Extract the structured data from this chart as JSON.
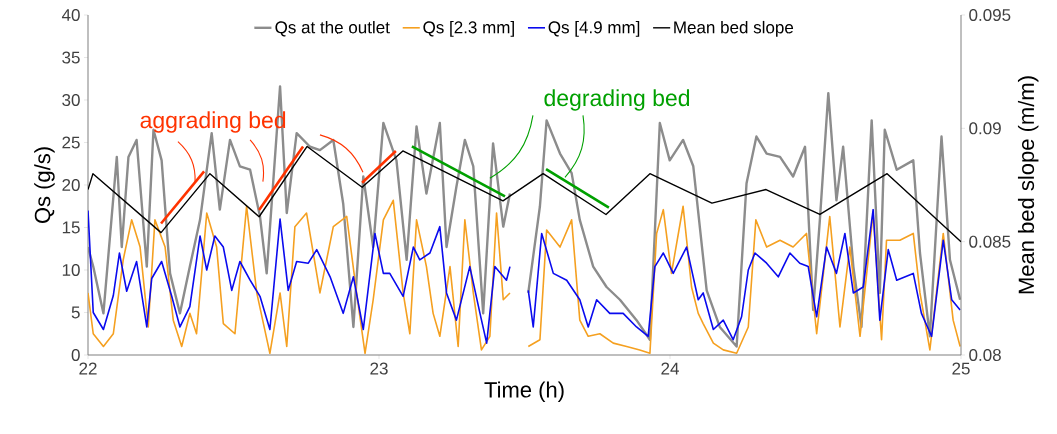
{
  "chart_data": {
    "type": "line",
    "xlabel": "Time (h)",
    "ylabel": "Qs (g/s)",
    "y2label": "Mean bed slope (m/m)",
    "xlim": [
      22,
      25
    ],
    "xticks": [
      22,
      23,
      24,
      25
    ],
    "ylim": [
      0,
      40
    ],
    "yticks": [
      0,
      5,
      10,
      15,
      20,
      25,
      30,
      35,
      40
    ],
    "y2lim": [
      0.08,
      0.095
    ],
    "y2ticks": [
      0.08,
      0.085,
      0.09,
      0.095
    ],
    "legend": "top",
    "marker": "none",
    "line_style": "solid",
    "annotations": [
      {
        "text": "aggrading bed",
        "x": 22.368,
        "y": 20.3
      },
      {
        "text": "degrading bed",
        "x": 23.381,
        "y": 20.8
      }
    ],
    "series": [
      {
        "name": "Qs at the outlet",
        "color": "#8c8c8c",
        "x": [
          22.0,
          22.018,
          22.053,
          22.099,
          22.116,
          22.139,
          22.167,
          22.202,
          22.225,
          22.253,
          22.282,
          22.316,
          22.35,
          22.385,
          22.425,
          22.453,
          22.488,
          22.522,
          22.557,
          22.591,
          22.614,
          22.66,
          22.683,
          22.717,
          22.763,
          22.797,
          22.843,
          22.877,
          22.912,
          22.946,
          22.98,
          23.015,
          23.06,
          23.095,
          23.129,
          23.163,
          23.209,
          23.232,
          23.266,
          23.295,
          23.324,
          23.358,
          23.392,
          23.427,
          23.45,
          23.48,
          23.513,
          23.553,
          23.576,
          23.622,
          23.662,
          23.69,
          23.736,
          23.782,
          23.828,
          23.885,
          23.931,
          23.965,
          23.999,
          24.045,
          24.08,
          24.126,
          24.171,
          24.229,
          24.263,
          24.297,
          24.332,
          24.378,
          24.423,
          24.464,
          24.492,
          24.515,
          24.544,
          24.572,
          24.595,
          24.63,
          24.658,
          24.693,
          24.721,
          24.738,
          24.779,
          24.836,
          24.859,
          24.893,
          24.933,
          24.962,
          24.997
        ],
        "values": [
          12.7,
          10.4,
          4.9,
          23.3,
          12.7,
          23.3,
          25.3,
          10.4,
          26.5,
          22.9,
          9.6,
          4.9,
          10.4,
          15.9,
          26.1,
          17.1,
          25.3,
          22.2,
          21.8,
          16.3,
          9.6,
          31.6,
          16.7,
          26.1,
          24.5,
          24.1,
          25.3,
          17.8,
          3.3,
          21,
          12.7,
          27.3,
          22.9,
          11.2,
          26.9,
          19,
          27.3,
          12.7,
          19.8,
          25.3,
          22.2,
          4.9,
          24.9,
          15.1,
          19,
          null,
          7.3,
          17.5,
          27.6,
          23.7,
          21.4,
          15.9,
          10.4,
          8,
          6.5,
          4.1,
          1.8,
          27.3,
          22.9,
          25.3,
          22.2,
          7.6,
          3.3,
          1,
          20.2,
          25.7,
          23.7,
          23.3,
          21,
          24.5,
          5.3,
          15.9,
          30.8,
          18.2,
          24.5,
          10.4,
          3.3,
          27.6,
          7.3,
          26.5,
          21.8,
          22.9,
          12,
          2.2,
          25.7,
          11.2,
          6.5
        ]
      },
      {
        "name": "Qs [2.3 mm]",
        "color": "#f5a020",
        "x": [
          22.0,
          22.018,
          22.053,
          22.087,
          22.121,
          22.15,
          22.179,
          22.207,
          22.23,
          22.265,
          22.293,
          22.322,
          22.35,
          22.373,
          22.408,
          22.442,
          22.465,
          22.505,
          22.545,
          22.58,
          22.625,
          22.66,
          22.683,
          22.711,
          22.751,
          22.797,
          22.843,
          22.889,
          22.923,
          22.952,
          22.98,
          23.015,
          23.049,
          23.083,
          23.106,
          23.129,
          23.163,
          23.186,
          23.209,
          23.244,
          23.272,
          23.295,
          23.324,
          23.352,
          23.381,
          23.404,
          23.427,
          23.45,
          23.48,
          23.513,
          23.553,
          23.576,
          23.622,
          23.662,
          23.69,
          23.719,
          23.759,
          23.805,
          23.851,
          23.896,
          23.931,
          23.954,
          23.977,
          24.005,
          24.045,
          24.074,
          24.097,
          24.114,
          24.149,
          24.183,
          24.229,
          24.269,
          24.295,
          24.332,
          24.378,
          24.423,
          24.469,
          24.504,
          24.549,
          24.584,
          24.618,
          24.653,
          24.698,
          24.727,
          24.744,
          24.79,
          24.836,
          24.859,
          24.893,
          24.939,
          24.973,
          24.997
        ],
        "values": [
          7.3,
          2.5,
          1,
          2.5,
          11.2,
          15.9,
          12.7,
          3.3,
          15.9,
          12.7,
          4.1,
          1,
          4.9,
          2.5,
          16.7,
          12.7,
          3.7,
          2.5,
          17.5,
          7.3,
          0.2,
          7.3,
          1,
          15.1,
          16.7,
          7.3,
          15.1,
          16.3,
          7.3,
          0.2,
          6.5,
          15.9,
          18.2,
          7.3,
          2.5,
          15.9,
          10.4,
          4.9,
          2.2,
          10.4,
          1,
          15.9,
          7.3,
          0.6,
          2.2,
          16.7,
          6.5,
          7.3,
          null,
          1,
          1.8,
          14.7,
          12.7,
          15.9,
          4.1,
          2.2,
          2.5,
          1.4,
          1,
          0.6,
          0.2,
          14.3,
          17.1,
          9.6,
          17.5,
          8,
          4.9,
          3.7,
          1.4,
          0.6,
          0.2,
          3.3,
          15.9,
          12.7,
          13.5,
          12.7,
          14.3,
          2.5,
          16.3,
          3.3,
          12.7,
          2.2,
          16.7,
          1.8,
          13.5,
          13.5,
          14.3,
          7.3,
          0.6,
          14.3,
          4.1,
          1
        ]
      },
      {
        "name": "Qs [4.9 mm]",
        "color": "#0a0aee",
        "x": [
          22.0,
          22.018,
          22.053,
          22.087,
          22.108,
          22.133,
          22.167,
          22.202,
          22.219,
          22.253,
          22.287,
          22.316,
          22.35,
          22.385,
          22.408,
          22.436,
          22.465,
          22.494,
          22.522,
          22.557,
          22.591,
          22.625,
          22.66,
          22.688,
          22.717,
          22.757,
          22.786,
          22.832,
          22.877,
          22.912,
          22.946,
          22.986,
          23.015,
          23.037,
          23.083,
          23.118,
          23.14,
          23.175,
          23.209,
          23.232,
          23.266,
          23.312,
          23.347,
          23.37,
          23.398,
          23.438,
          23.45,
          23.48,
          23.513,
          23.53,
          23.559,
          23.599,
          23.645,
          23.69,
          23.719,
          23.748,
          23.793,
          23.839,
          23.885,
          23.925,
          23.948,
          23.977,
          24.011,
          24.057,
          24.097,
          24.114,
          24.149,
          24.183,
          24.217,
          24.246,
          24.269,
          24.292,
          24.332,
          24.372,
          24.412,
          24.446,
          24.475,
          24.504,
          24.538,
          24.572,
          24.601,
          24.63,
          24.664,
          24.698,
          24.721,
          24.75,
          24.779,
          24.836,
          24.864,
          24.899,
          24.939,
          24.968,
          24.997
        ],
        "values": [
          17,
          5,
          3,
          7,
          12,
          7.5,
          11,
          3.3,
          9,
          11,
          7,
          3.3,
          5.7,
          14,
          10,
          14,
          12.7,
          7.6,
          11,
          8.8,
          6.9,
          3,
          16,
          7.6,
          11,
          10.8,
          12.4,
          9.2,
          4.9,
          9.2,
          3,
          14.3,
          9.6,
          9.6,
          6.9,
          12.7,
          11.2,
          12,
          15.1,
          7.3,
          4.1,
          10.4,
          4.9,
          1.4,
          10.4,
          8.8,
          10.4,
          null,
          7.6,
          3.3,
          14.3,
          9.6,
          8.8,
          6.5,
          3.3,
          6.5,
          4.9,
          4.9,
          3.3,
          2.2,
          10.4,
          12,
          9.6,
          12.7,
          6.5,
          7.3,
          3,
          4.1,
          1.8,
          4.5,
          10,
          12,
          10.8,
          9.2,
          12,
          10.8,
          10.4,
          4.5,
          12.7,
          9.6,
          14.3,
          7.3,
          8,
          17.1,
          4.1,
          12.4,
          8.8,
          9.6,
          4.9,
          2.2,
          13.5,
          6.5,
          5.3
        ]
      },
      {
        "name": "Mean bed slope",
        "color": "#000000",
        "axis": "y2",
        "x": [
          22.0,
          22.017,
          22.251,
          22.419,
          22.588,
          22.753,
          22.942,
          23.082,
          23.426,
          23.564,
          23.78,
          23.931,
          24.144,
          24.33,
          24.515,
          24.746,
          25.0
        ],
        "values": [
          0.0873,
          0.088,
          0.0854,
          0.088,
          0.0861,
          0.0892,
          0.0874,
          0.089,
          0.0868,
          0.088,
          0.0862,
          0.088,
          0.0867,
          0.0873,
          0.0862,
          0.088,
          0.085
        ]
      },
      {
        "color": "#ff3300",
        "axis": "y2",
        "x": [
          22.251,
          22.399
        ],
        "values": [
          0.0858,
          0.0881
        ]
      },
      {
        "color": "#ff3300",
        "axis": "y2",
        "x": [
          22.588,
          22.739
        ],
        "values": [
          0.0864,
          0.0892
        ]
      },
      {
        "color": "#ff3300",
        "axis": "y2",
        "x": [
          22.942,
          23.058
        ],
        "values": [
          0.0876,
          0.089
        ]
      },
      {
        "color": "#00a000",
        "axis": "y2",
        "x": [
          23.113,
          23.433
        ],
        "values": [
          0.0892,
          0.087
        ]
      },
      {
        "color": "#00a000",
        "axis": "y2",
        "x": [
          23.574,
          23.79
        ],
        "values": [
          0.0882,
          0.0865
        ]
      }
    ]
  }
}
